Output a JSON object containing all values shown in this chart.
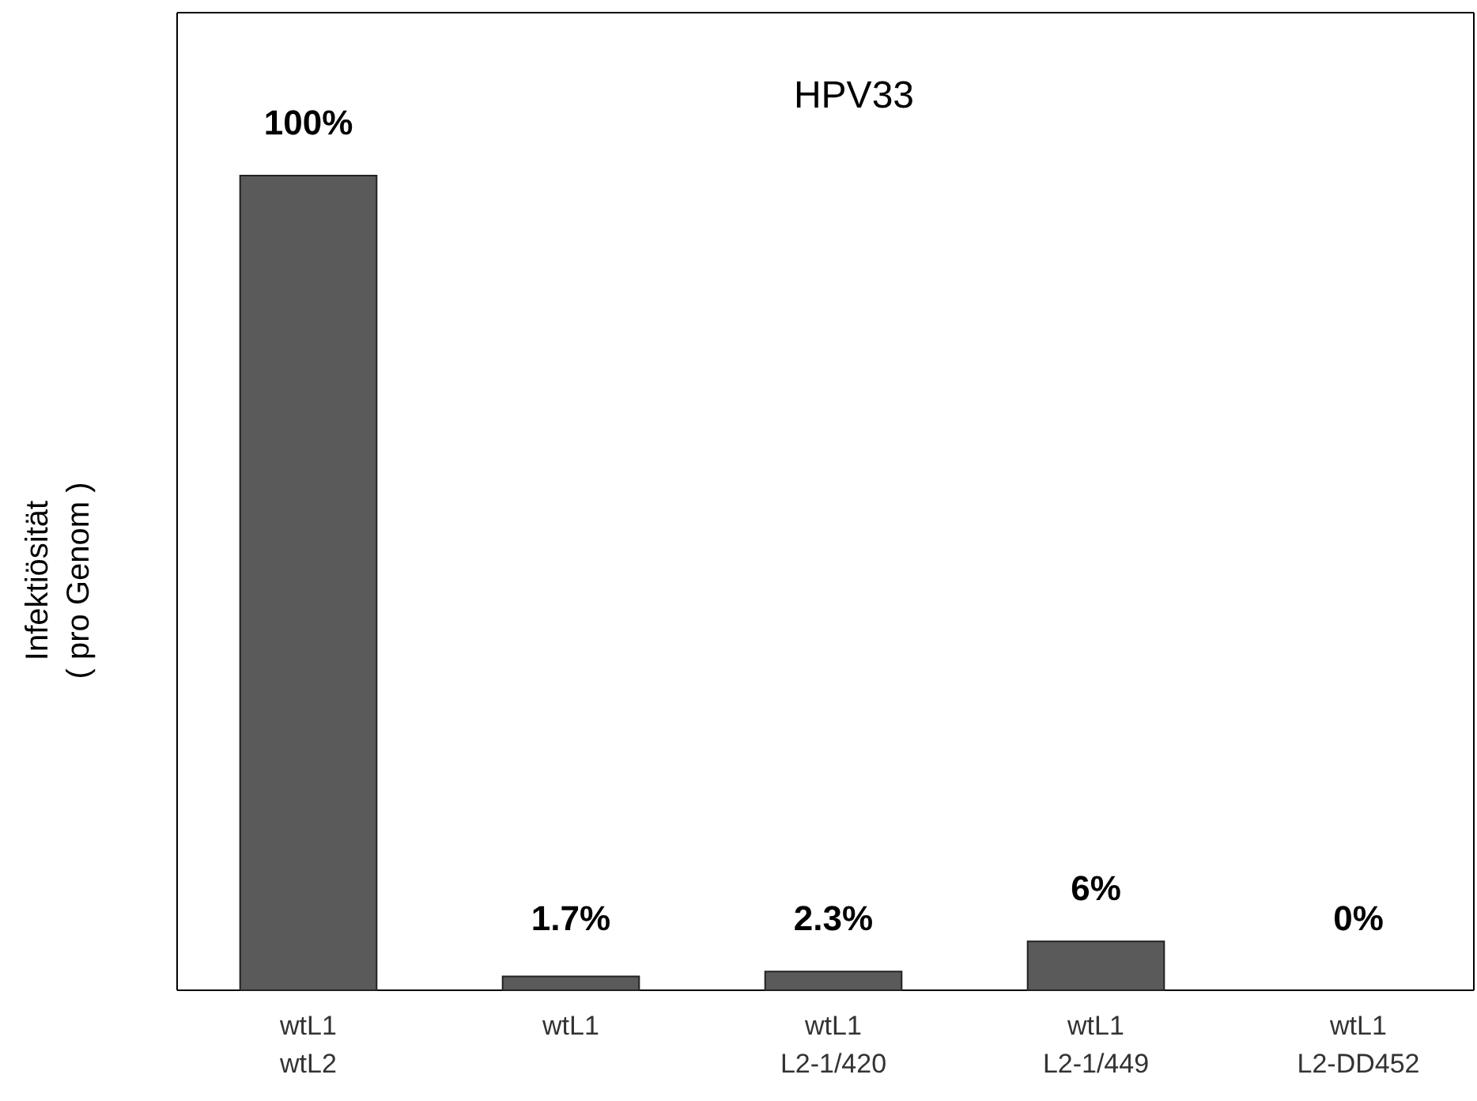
{
  "chart_data": {
    "type": "bar",
    "title": "HPV33",
    "ylabel": "Infektiösität\n( pro Genom )",
    "categories": [
      "wtL1\nwtL2",
      "wtL1",
      "wtL1\nL2-1/420",
      "wtL1\nL2-1/449",
      "wtL1\nL2-DD452"
    ],
    "values": [
      100,
      1.7,
      2.3,
      6,
      0
    ],
    "value_labels": [
      "100%",
      "1.7%",
      "2.3%",
      "6%",
      "0%"
    ],
    "color": "#5a5a5a",
    "ylim": [
      0,
      120
    ]
  }
}
